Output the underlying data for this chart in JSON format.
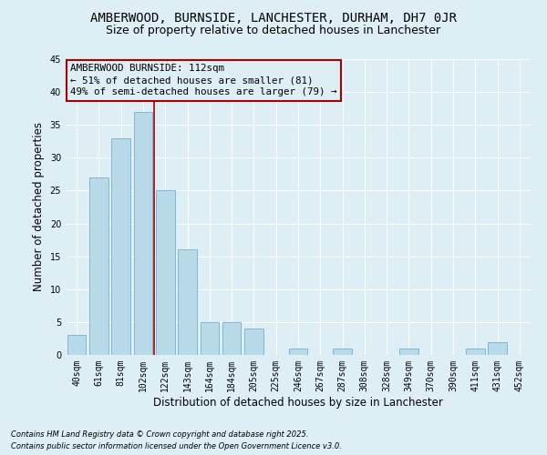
{
  "title": "AMBERWOOD, BURNSIDE, LANCHESTER, DURHAM, DH7 0JR",
  "subtitle": "Size of property relative to detached houses in Lanchester",
  "xlabel": "Distribution of detached houses by size in Lanchester",
  "ylabel": "Number of detached properties",
  "categories": [
    "40sqm",
    "61sqm",
    "81sqm",
    "102sqm",
    "122sqm",
    "143sqm",
    "164sqm",
    "184sqm",
    "205sqm",
    "225sqm",
    "246sqm",
    "267sqm",
    "287sqm",
    "308sqm",
    "328sqm",
    "349sqm",
    "370sqm",
    "390sqm",
    "411sqm",
    "431sqm",
    "452sqm"
  ],
  "values": [
    3,
    27,
    33,
    37,
    25,
    16,
    5,
    5,
    4,
    0,
    1,
    0,
    1,
    0,
    0,
    1,
    0,
    0,
    1,
    2,
    0
  ],
  "bar_color": "#b8d9e8",
  "bar_edge_color": "#7fb8d4",
  "vline_color": "#aa0000",
  "annotation_title": "AMBERWOOD BURNSIDE: 112sqm",
  "annotation_line1": "← 51% of detached houses are smaller (81)",
  "annotation_line2": "49% of semi-detached houses are larger (79) →",
  "annotation_box_edge": "#aa0000",
  "ylim": [
    0,
    45
  ],
  "yticks": [
    0,
    5,
    10,
    15,
    20,
    25,
    30,
    35,
    40,
    45
  ],
  "footnote1": "Contains HM Land Registry data © Crown copyright and database right 2025.",
  "footnote2": "Contains public sector information licensed under the Open Government Licence v3.0.",
  "bg_color": "#ddeef5",
  "grid_color": "#ffffff",
  "title_fontsize": 10,
  "subtitle_fontsize": 9,
  "axis_label_fontsize": 8.5,
  "tick_fontsize": 7,
  "ann_fontsize": 7.8,
  "footnote_fontsize": 6
}
